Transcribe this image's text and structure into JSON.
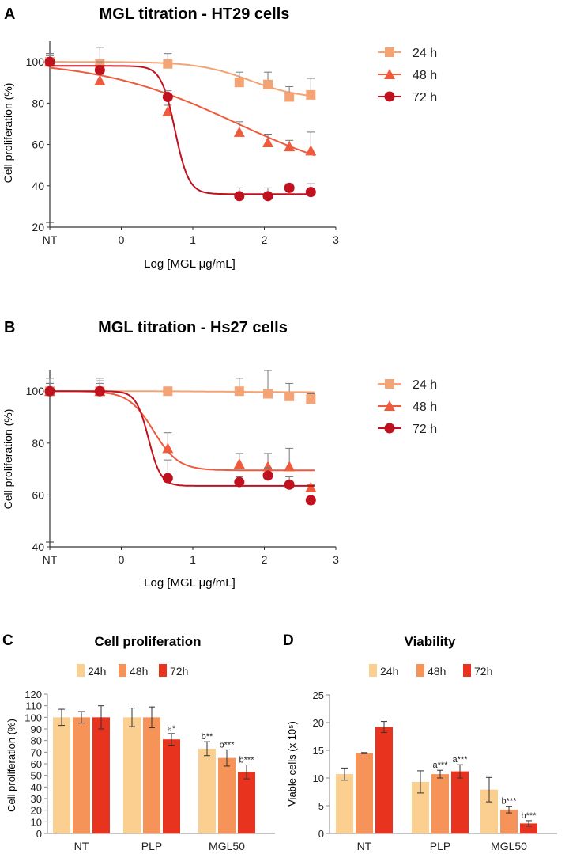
{
  "colors": {
    "c24": "#f4a374",
    "c48": "#ef5a3c",
    "c72": "#c0121e",
    "bar24": "#fbcf8f",
    "bar48": "#f69359",
    "bar72": "#e8331f",
    "axis": "#333333"
  },
  "chart_data": [
    {
      "panel": "A",
      "type": "line",
      "title": "MGL titration - HT29 cells",
      "xlabel": "Log [MGL μg/mL]",
      "ylabel": "Cell proliferation (%)",
      "xlim": [
        -1,
        3
      ],
      "ylim": [
        20,
        110
      ],
      "xticks": [
        {
          "v": -1,
          "label": "NT"
        },
        {
          "v": 0,
          "label": "0"
        },
        {
          "v": 1,
          "label": "1"
        },
        {
          "v": 2,
          "label": "2"
        },
        {
          "v": 3,
          "label": "3"
        }
      ],
      "yticks": [
        20,
        40,
        60,
        80,
        100
      ],
      "series": [
        {
          "name": "24 h",
          "marker": "square",
          "color": "#f4a374",
          "x": [
            -1,
            -0.3,
            0.65,
            1.65,
            2.05,
            2.35,
            2.65
          ],
          "y": [
            100,
            99,
            99,
            90,
            89,
            83,
            84
          ],
          "err": [
            4,
            8,
            5,
            5,
            6,
            5,
            8
          ],
          "fit": {
            "bottom": 82,
            "top": 100,
            "ec50": 1.8,
            "hill": 1.2
          }
        },
        {
          "name": "48 h",
          "marker": "triangle",
          "color": "#ef5a3c",
          "x": [
            -1,
            -0.3,
            0.65,
            1.65,
            2.05,
            2.35,
            2.65
          ],
          "y": [
            100,
            91,
            76,
            66,
            61,
            59,
            57
          ],
          "err": [
            4,
            3,
            3,
            5,
            4,
            3,
            9
          ],
          "fit": {
            "bottom": 40,
            "top": 101,
            "ec50": 1.6,
            "hill": 0.45
          }
        },
        {
          "name": "72 h",
          "marker": "circle",
          "color": "#c0121e",
          "x": [
            -1,
            -0.3,
            0.65,
            1.65,
            2.05,
            2.35,
            2.65
          ],
          "y": [
            100,
            96,
            83,
            35,
            35,
            39,
            37
          ],
          "err": [
            3,
            4,
            3,
            4,
            4,
            2,
            4
          ],
          "fit": {
            "bottom": 36,
            "top": 98,
            "ec50": 0.75,
            "hill": 4.5
          }
        }
      ]
    },
    {
      "panel": "B",
      "type": "line",
      "title": "MGL titration - Hs27 cells",
      "xlabel": "Log [MGL μg/mL]",
      "ylabel": "Cell proliferation (%)",
      "xlim": [
        -1,
        3
      ],
      "ylim": [
        40,
        108
      ],
      "xticks": [
        {
          "v": -1,
          "label": "NT"
        },
        {
          "v": 0,
          "label": "0"
        },
        {
          "v": 1,
          "label": "1"
        },
        {
          "v": 2,
          "label": "2"
        },
        {
          "v": 3,
          "label": "3"
        }
      ],
      "yticks": [
        40,
        60,
        80,
        100
      ],
      "series": [
        {
          "name": "24 h",
          "marker": "square",
          "color": "#f4a374",
          "x": [
            -1,
            -0.3,
            0.65,
            1.65,
            2.05,
            2.35,
            2.65
          ],
          "y": [
            100,
            100,
            100,
            100,
            99,
            98,
            97
          ],
          "err": [
            5,
            5,
            1,
            5,
            9,
            5,
            2
          ],
          "fit": {
            "bottom": 99.6,
            "top": 100,
            "ec50": 1.5,
            "hill": 1
          }
        },
        {
          "name": "48 h",
          "marker": "triangle",
          "color": "#ef5a3c",
          "x": [
            -1,
            -0.3,
            0.65,
            1.65,
            2.05,
            2.35,
            2.65
          ],
          "y": [
            100,
            100,
            78,
            72,
            71,
            71,
            63
          ],
          "err": [
            3,
            4,
            6,
            4,
            5,
            7,
            1
          ],
          "fit": {
            "bottom": 69.5,
            "top": 100,
            "ec50": 0.45,
            "hill": 2.5
          }
        },
        {
          "name": "72 h",
          "marker": "circle",
          "color": "#c0121e",
          "x": [
            -1,
            -0.3,
            0.65,
            1.65,
            2.05,
            2.35,
            2.65
          ],
          "y": [
            100,
            100,
            66.5,
            65,
            67.5,
            64,
            58
          ],
          "err": [
            3,
            3,
            7,
            2,
            3,
            3,
            1
          ],
          "fit": {
            "bottom": 63.5,
            "top": 100,
            "ec50": 0.38,
            "hill": 5
          }
        }
      ]
    },
    {
      "panel": "C",
      "type": "bar",
      "title": "Cell proliferation",
      "ylabel": "Cell proliferation (%)",
      "ylim": [
        0,
        120
      ],
      "yticks": [
        0,
        10,
        20,
        30,
        40,
        50,
        60,
        70,
        80,
        90,
        100,
        110,
        120
      ],
      "categories": [
        "NT",
        "PLP",
        "MGL50"
      ],
      "series": [
        {
          "name": "24h",
          "color": "#fbcf8f",
          "values": [
            100,
            100,
            73
          ],
          "err": [
            7,
            8,
            6
          ],
          "labels": [
            "",
            "",
            "b**"
          ]
        },
        {
          "name": "48h",
          "color": "#f69359",
          "values": [
            100,
            100,
            65
          ],
          "err": [
            5,
            9,
            7
          ],
          "labels": [
            "",
            "",
            "b***"
          ]
        },
        {
          "name": "72h",
          "color": "#e8331f",
          "values": [
            100,
            81,
            53
          ],
          "err": [
            10,
            5,
            6
          ],
          "labels": [
            "",
            "a*",
            "b***"
          ]
        }
      ]
    },
    {
      "panel": "D",
      "type": "bar",
      "title": "Viability",
      "ylabel": "Viable cells (x 10⁵)",
      "ylim": [
        0,
        25
      ],
      "yticks": [
        0,
        5,
        10,
        15,
        20,
        25
      ],
      "categories": [
        "NT",
        "PLP",
        "MGL50"
      ],
      "series": [
        {
          "name": "24h",
          "color": "#fbcf8f",
          "values": [
            10.7,
            9.3,
            7.9
          ],
          "err": [
            1.1,
            2.0,
            2.2
          ],
          "labels": [
            "",
            "",
            ""
          ]
        },
        {
          "name": "48h",
          "color": "#f69359",
          "values": [
            14.5,
            10.7,
            4.3
          ],
          "err": [
            0.1,
            0.7,
            0.6
          ],
          "labels": [
            "",
            "a***",
            "b***"
          ]
        },
        {
          "name": "72h",
          "color": "#e8331f",
          "values": [
            19.2,
            11.2,
            1.8
          ],
          "err": [
            1.0,
            1.2,
            0.5
          ],
          "labels": [
            "",
            "a***",
            "b***"
          ]
        }
      ]
    }
  ]
}
